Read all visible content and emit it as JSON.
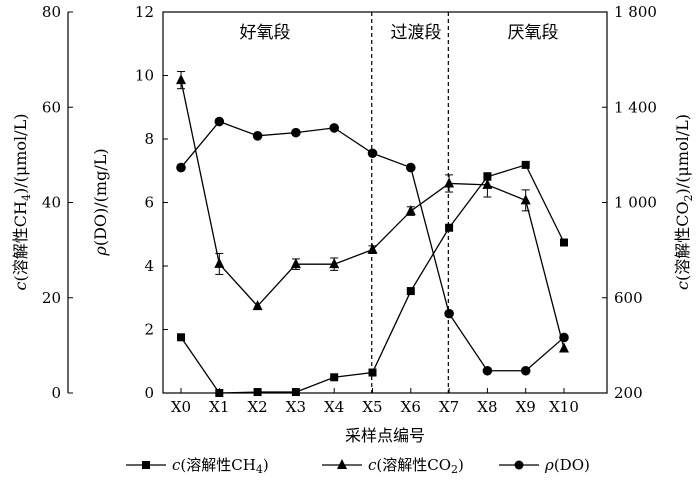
{
  "chart_data": {
    "type": "line",
    "categories": [
      "X0",
      "X1",
      "X2",
      "X3",
      "X4",
      "X5",
      "X6",
      "X7",
      "X8",
      "X9",
      "X10"
    ],
    "xlabel": "采样点编号",
    "axes": {
      "left_outer": {
        "label": "c(溶解性CH4)/(μmol/L)",
        "ylim": [
          0,
          80
        ],
        "ticks": [
          "0",
          "20",
          "40",
          "60",
          "80"
        ]
      },
      "left_inner": {
        "label": "ρ(DO)/(mg/L)",
        "ylim": [
          0,
          12
        ],
        "ticks": [
          "0",
          "2",
          "4",
          "6",
          "8",
          "10",
          "12"
        ]
      },
      "right": {
        "label": "c(溶解性CO2)/(μmol/L)",
        "ylim": [
          200,
          1800
        ],
        "ticks": [
          "200",
          "600",
          "1 000",
          "1 400",
          "1 800"
        ]
      }
    },
    "regions": [
      {
        "label": "好氧段",
        "from": "X0",
        "to": "X5"
      },
      {
        "label": "过渡段",
        "from": "X5",
        "to": "X7"
      },
      {
        "label": "厌氧段",
        "from": "X7",
        "to": "X10"
      }
    ],
    "boundaries": [
      4.98,
      6.98
    ],
    "series": [
      {
        "name": "c(溶解性CH4)",
        "axis": "left_outer",
        "marker": "square",
        "values": [
          11.7,
          0,
          0.2,
          0.2,
          3.3,
          4.3,
          21.4,
          34.7,
          45.4,
          47.9,
          31.6
        ]
      },
      {
        "name": "c(溶解性CO2)",
        "axis": "right",
        "marker": "triangle",
        "values": [
          1514,
          742,
          565,
          741,
          741,
          802,
          964,
          1080,
          1074,
          1009,
          387
        ],
        "errors": [
          36,
          44,
          0,
          22,
          26,
          16,
          18,
          36,
          51,
          44,
          0
        ]
      },
      {
        "name": "ρ(DO)",
        "axis": "left_inner",
        "marker": "circle",
        "values": [
          7.1,
          8.55,
          8.1,
          8.2,
          8.35,
          7.55,
          7.1,
          2.5,
          0.7,
          0.7,
          1.75
        ]
      }
    ]
  },
  "legend": {
    "ch4_prefix": "c",
    "ch4_main": "(溶解性CH",
    "ch4_sub": "4",
    "ch4_end": ")",
    "co2_prefix": "c",
    "co2_main": "(溶解性CO",
    "co2_sub": "2",
    "co2_end": ")",
    "do_prefix": "ρ",
    "do_main": "(DO)"
  },
  "axis_titles": {
    "left_outer_prefix": "c",
    "left_outer_main": "(溶解性CH",
    "left_outer_sub": "4",
    "left_outer_end": ")/(μmol/L)",
    "left_inner_prefix": "ρ",
    "left_inner_main": "(DO)/(mg/L)",
    "right_prefix": "c",
    "right_main": "(溶解性CO",
    "right_sub": "2",
    "right_end": ")/(μmol/L)"
  }
}
